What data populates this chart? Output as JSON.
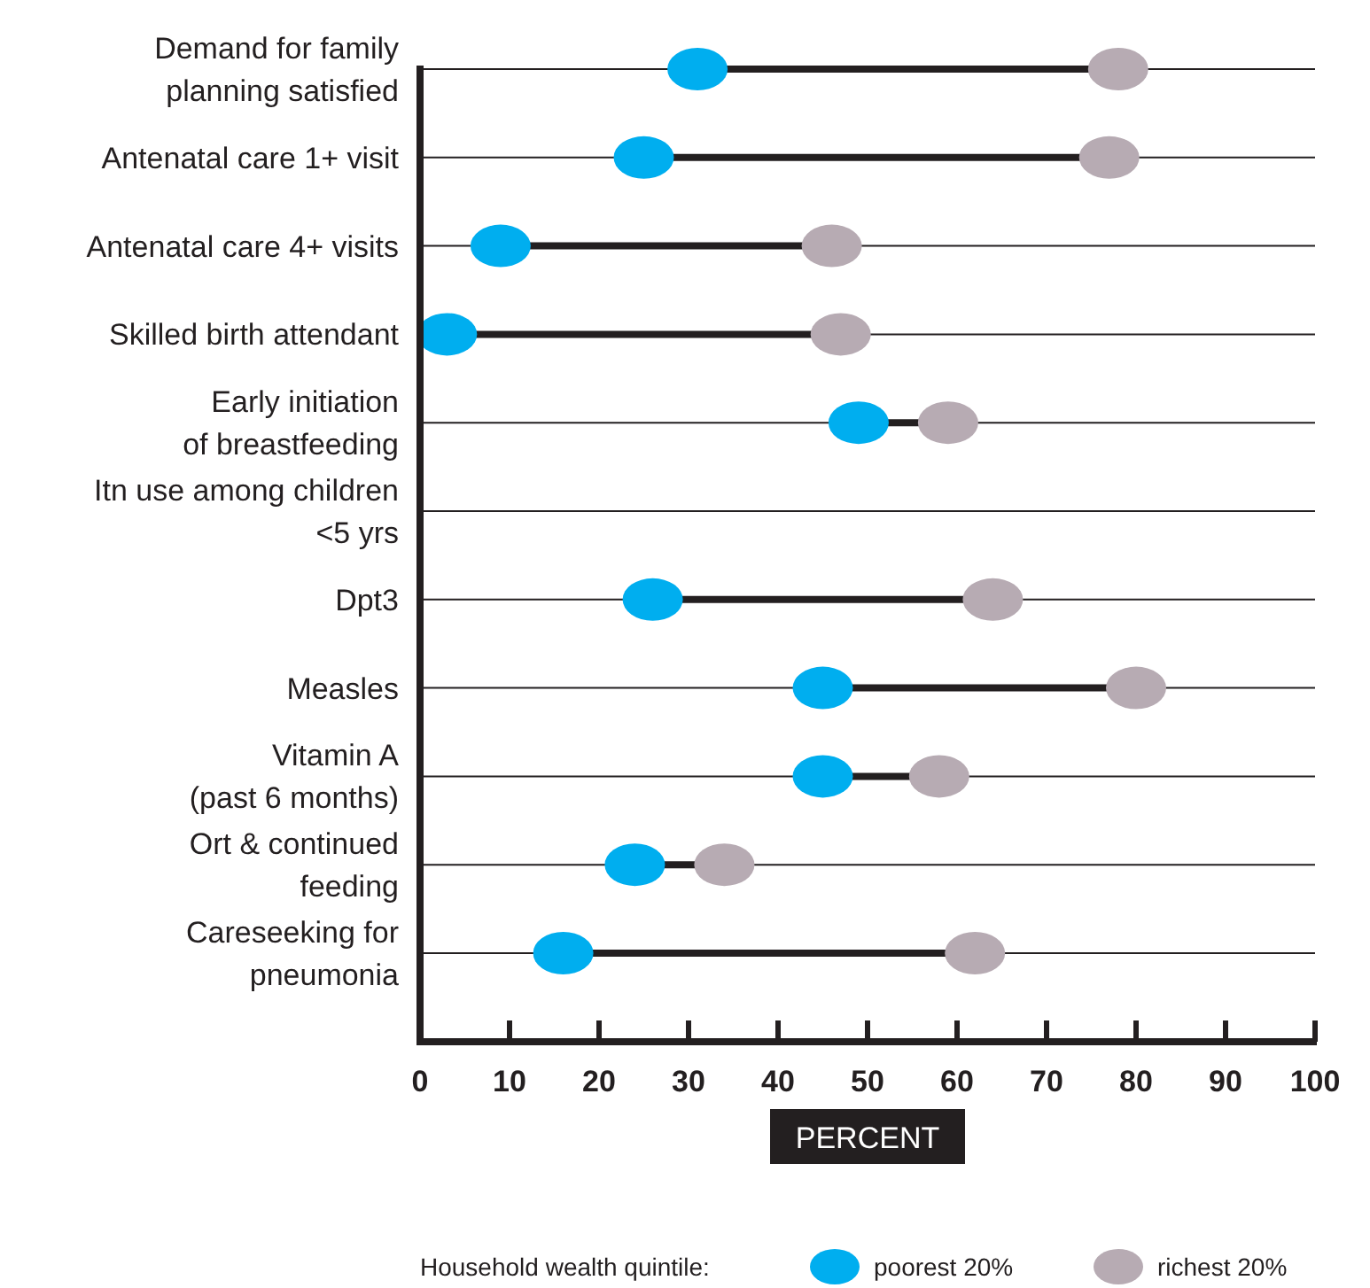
{
  "chart_data": {
    "type": "scatter",
    "orientation": "horizontal",
    "categories": [
      "Demand for family\nplanning satisfied",
      "Antenatal care 1+ visit",
      "Antenatal care 4+ visits",
      "Skilled birth attendant",
      "Early initiation\nof breastfeeding",
      "Itn use among children\n<5 yrs",
      "Dpt3",
      "Measles",
      "Vitamin A\n(past 6 months)",
      "Ort & continued\nfeeding",
      "Careseeking for\npneumonia"
    ],
    "series": [
      {
        "name": "poorest 20%",
        "color": "#00aeef",
        "values": [
          31,
          25,
          9,
          3,
          49,
          null,
          26,
          45,
          45,
          24,
          16
        ]
      },
      {
        "name": "richest 20%",
        "color": "#b7abb3",
        "values": [
          78,
          77,
          46,
          47,
          59,
          null,
          64,
          80,
          58,
          34,
          62
        ]
      }
    ],
    "xlim": [
      0,
      100
    ],
    "xticks": [
      0,
      10,
      20,
      30,
      40,
      50,
      60,
      70,
      80,
      90,
      100
    ],
    "xlabel": "PERCENT",
    "legend_title": "Household wealth quintile:",
    "legend": "bottom",
    "grid": "y",
    "marker": "circle"
  }
}
